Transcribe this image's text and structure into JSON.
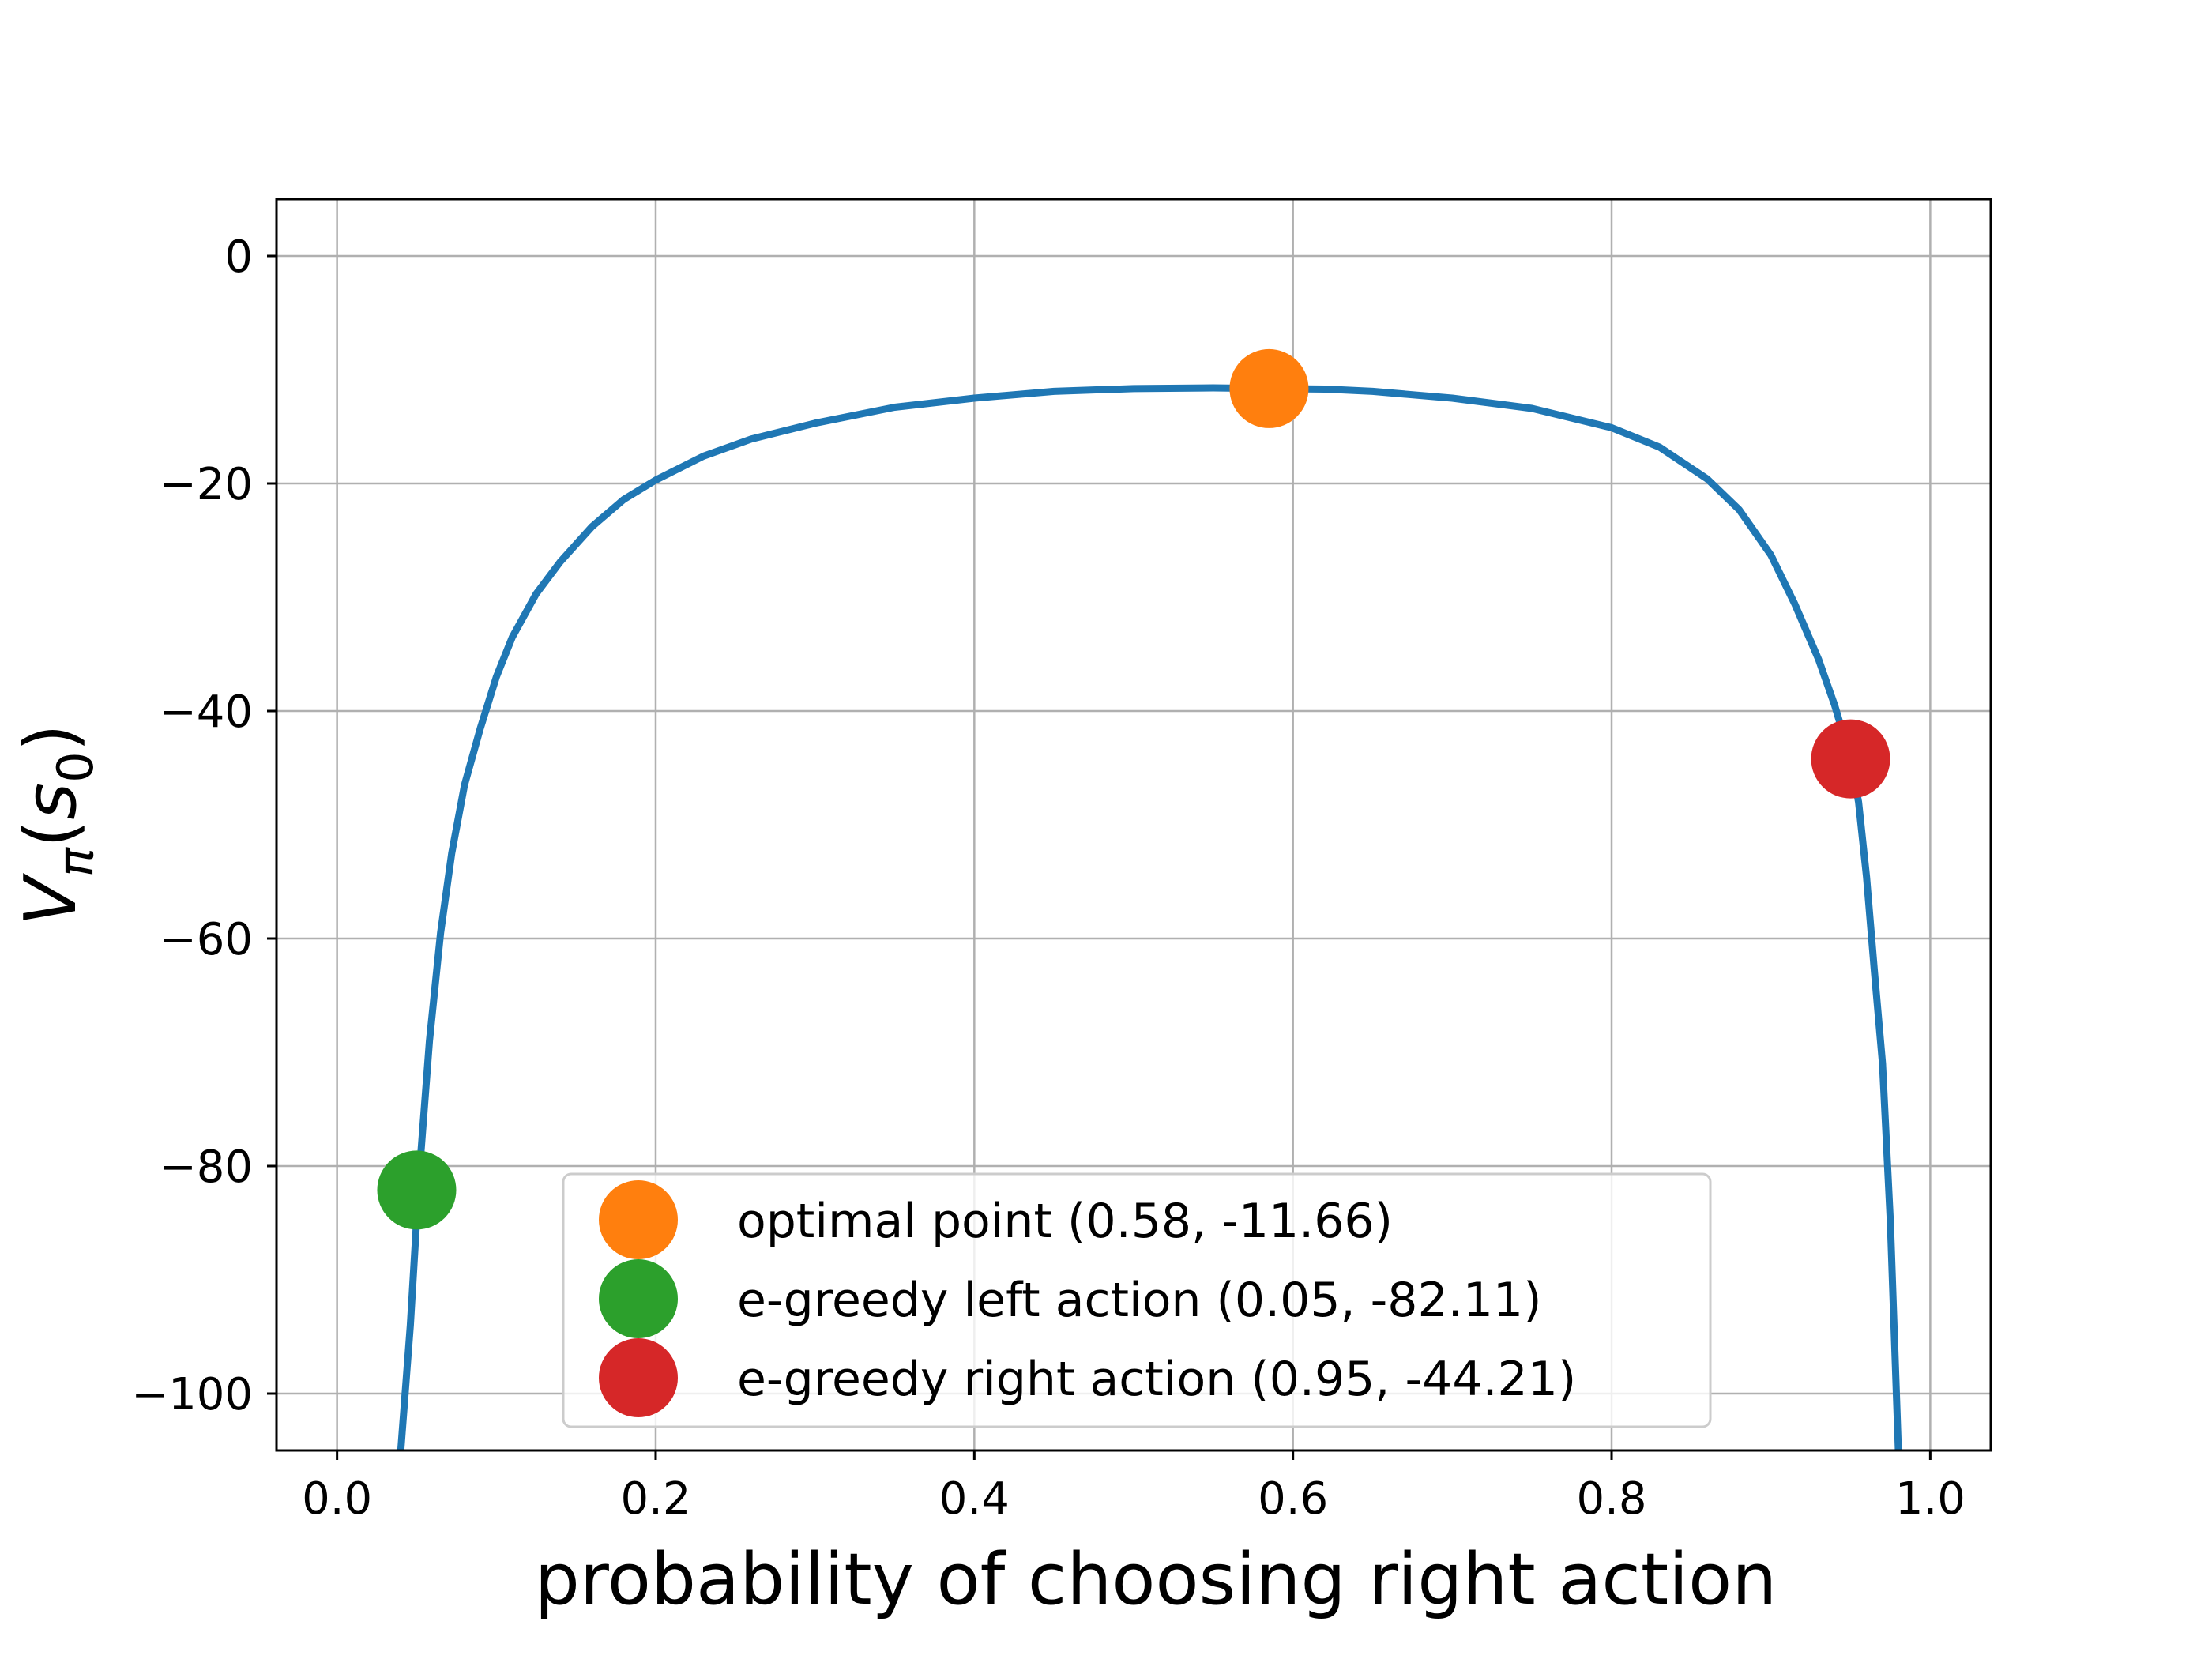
{
  "chart_data": {
    "type": "line",
    "xlabel": "probability of choosing right action",
    "ylabel_main": "V",
    "ylabel_sub": "π",
    "ylabel_paren_open": "(",
    "ylabel_arg": "s",
    "ylabel_arg_sub": "0",
    "ylabel_paren_close": ")",
    "xlim": [
      -0.038,
      1.038
    ],
    "ylim": [
      -105,
      5
    ],
    "xticks": [
      0.0,
      0.2,
      0.4,
      0.6,
      0.8,
      1.0
    ],
    "xtick_labels": [
      "0.0",
      "0.2",
      "0.4",
      "0.6",
      "0.8",
      "1.0"
    ],
    "yticks": [
      0,
      -20,
      -40,
      -60,
      -80,
      -100
    ],
    "ytick_labels": [
      "0",
      "−20",
      "−40",
      "−60",
      "−80",
      "−100"
    ],
    "grid": true,
    "line_color": "#1f77b4",
    "series": [
      {
        "x": [
          0.04,
          0.046,
          0.052,
          0.058,
          0.065,
          0.072,
          0.08,
          0.09,
          0.1,
          0.11,
          0.125,
          0.14,
          0.16,
          0.18,
          0.2,
          0.23,
          0.26,
          0.3,
          0.35,
          0.4,
          0.45,
          0.5,
          0.55,
          0.585,
          0.62,
          0.65,
          0.7,
          0.75,
          0.8,
          0.83,
          0.86,
          0.88,
          0.9,
          0.915,
          0.93,
          0.94,
          0.95,
          0.955,
          0.96,
          0.965,
          0.97,
          0.975,
          0.98
        ],
        "y": [
          -105,
          -94,
          -80,
          -69,
          -59.5,
          -52.5,
          -46.5,
          -41.5,
          -37,
          -33.5,
          -29.7,
          -26.9,
          -23.8,
          -21.4,
          -19.7,
          -17.6,
          -16.1,
          -14.7,
          -13.3,
          -12.5,
          -11.9,
          -11.66,
          -11.6,
          -11.66,
          -11.7,
          -11.9,
          -12.5,
          -13.4,
          -15.1,
          -16.8,
          -19.6,
          -22.3,
          -26.3,
          -30.6,
          -35.5,
          -39.5,
          -44.21,
          -48,
          -54.6,
          -63,
          -71,
          -85,
          -105
        ]
      }
    ],
    "points": [
      {
        "label": "optimal point (0.58, -11.66)",
        "x": 0.585,
        "y": -11.66,
        "color": "#ff7f0e"
      },
      {
        "label": "e-greedy left action (0.05, -82.11)",
        "x": 0.05,
        "y": -82.11,
        "color": "#2ca02c"
      },
      {
        "label": "e-greedy right action (0.95, -44.21)",
        "x": 0.95,
        "y": -44.21,
        "color": "#d62728"
      }
    ],
    "legend_position": "lower center"
  }
}
